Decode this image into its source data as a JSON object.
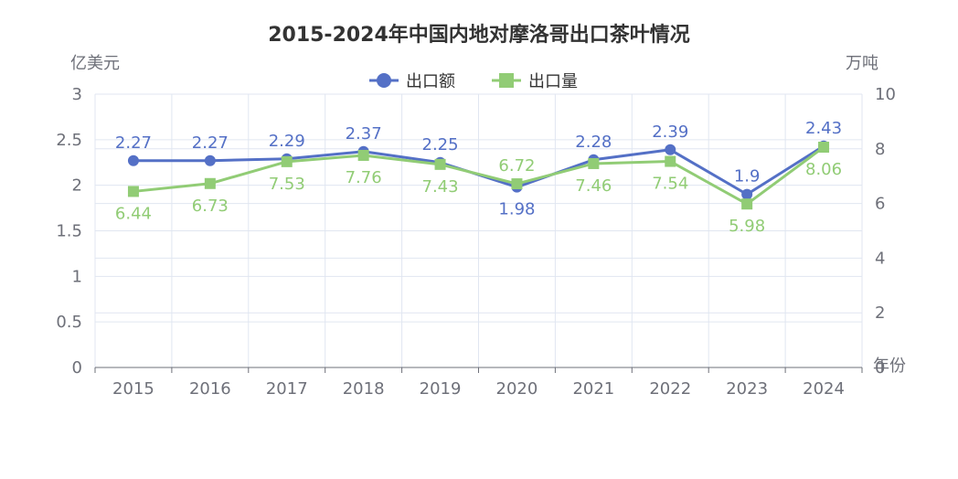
{
  "chart_data": {
    "type": "line",
    "title": "2015-2024年中国内地对摩洛哥出口茶叶情况",
    "x_axis_name": "年份",
    "categories": [
      "2015",
      "2016",
      "2017",
      "2018",
      "2019",
      "2020",
      "2021",
      "2022",
      "2023",
      "2024"
    ],
    "y_left": {
      "unit": "亿美元",
      "min": 0,
      "max": 3,
      "ticks": [
        "0",
        "0.5",
        "1",
        "1.5",
        "2",
        "2.5",
        "3"
      ]
    },
    "y_right": {
      "unit": "万吨",
      "min": 0,
      "max": 10,
      "ticks": [
        "0",
        "2",
        "4",
        "6",
        "8",
        "10"
      ]
    },
    "grid": true,
    "legend_position": "top-center",
    "series": [
      {
        "name": "出口额",
        "axis": "left",
        "color": "#5470c6",
        "marker": "circle",
        "values": [
          2.27,
          2.27,
          2.29,
          2.37,
          2.25,
          1.98,
          2.28,
          2.39,
          1.9,
          2.43
        ],
        "labels": [
          "2.27",
          "2.27",
          "2.29",
          "2.37",
          "2.25",
          "1.98",
          "2.28",
          "2.39",
          "1.9",
          "2.43"
        ]
      },
      {
        "name": "出口量",
        "axis": "right",
        "color": "#91cc75",
        "marker": "square",
        "values": [
          6.44,
          6.73,
          7.53,
          7.76,
          7.43,
          6.72,
          7.46,
          7.54,
          5.98,
          8.06
        ],
        "labels": [
          "6.44",
          "6.73",
          "7.53",
          "7.76",
          "7.43",
          "6.72",
          "7.46",
          "7.54",
          "5.98",
          "8.06"
        ]
      }
    ]
  }
}
